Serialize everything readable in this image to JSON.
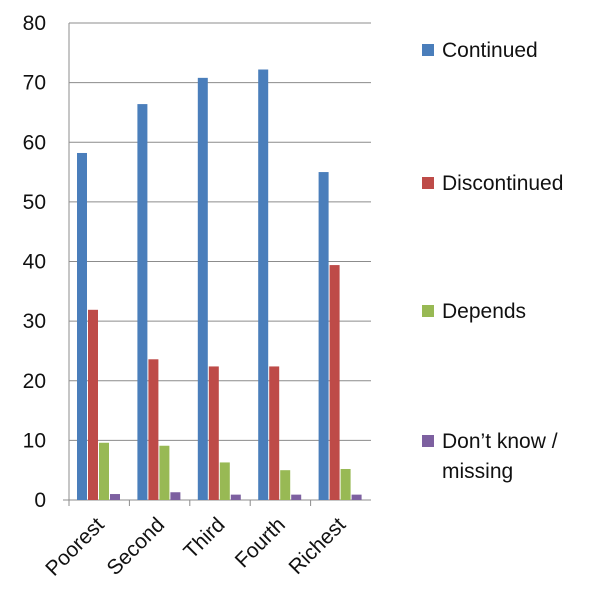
{
  "chart_data": {
    "type": "bar",
    "categories": [
      "Poorest",
      "Second",
      "Third",
      "Fourth",
      "Richest"
    ],
    "series": [
      {
        "name": "Continued",
        "values": [
          58.2,
          66.4,
          70.8,
          72.2,
          55.0
        ],
        "color": "#4a7ebb"
      },
      {
        "name": "Discontinued",
        "values": [
          31.9,
          23.6,
          22.4,
          22.4,
          39.4
        ],
        "color": "#be4b48"
      },
      {
        "name": "Depends",
        "values": [
          9.6,
          9.1,
          6.3,
          5.0,
          5.2
        ],
        "color": "#98b954"
      },
      {
        "name": "Don’t know / missing",
        "legend_lines": [
          "Don’t know /",
          "missing"
        ],
        "values": [
          1.0,
          1.3,
          0.9,
          0.9,
          0.9
        ],
        "color": "#7d60a0"
      }
    ],
    "yticks": [
      0,
      10,
      20,
      30,
      40,
      50,
      60,
      70,
      80
    ],
    "ylim": [
      0,
      80
    ],
    "grid": true,
    "legend_position": "right"
  }
}
